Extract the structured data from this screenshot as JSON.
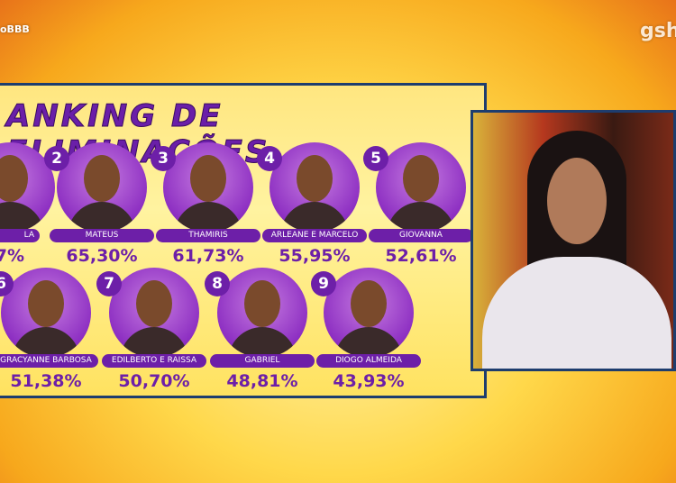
{
  "logos": {
    "left": "oBBB",
    "right": "gsh"
  },
  "board": {
    "title": "ANKING DE ELIMINAÇÕES",
    "entries": [
      {
        "name": "LA",
        "percent": "7%"
      },
      {
        "rank": "2",
        "name": "MATEUS",
        "percent": "65,30%"
      },
      {
        "rank": "3",
        "name": "THAMIRIS",
        "percent": "61,73%"
      },
      {
        "rank": "4",
        "name": "ARLEANE E MARCELO",
        "percent": "55,95%"
      },
      {
        "rank": "5",
        "name": "GIOVANNA",
        "percent": "52,61%"
      },
      {
        "rank": "6",
        "name": "GRACYANNE BARBOSA",
        "percent": "51,38%"
      },
      {
        "rank": "7",
        "name": "EDILBERTO E RAISSA",
        "percent": "50,70%"
      },
      {
        "rank": "8",
        "name": "GABRIEL",
        "percent": "48,81%"
      },
      {
        "rank": "9",
        "name": "DIOGO ALMEIDA",
        "percent": "43,93%"
      }
    ]
  }
}
